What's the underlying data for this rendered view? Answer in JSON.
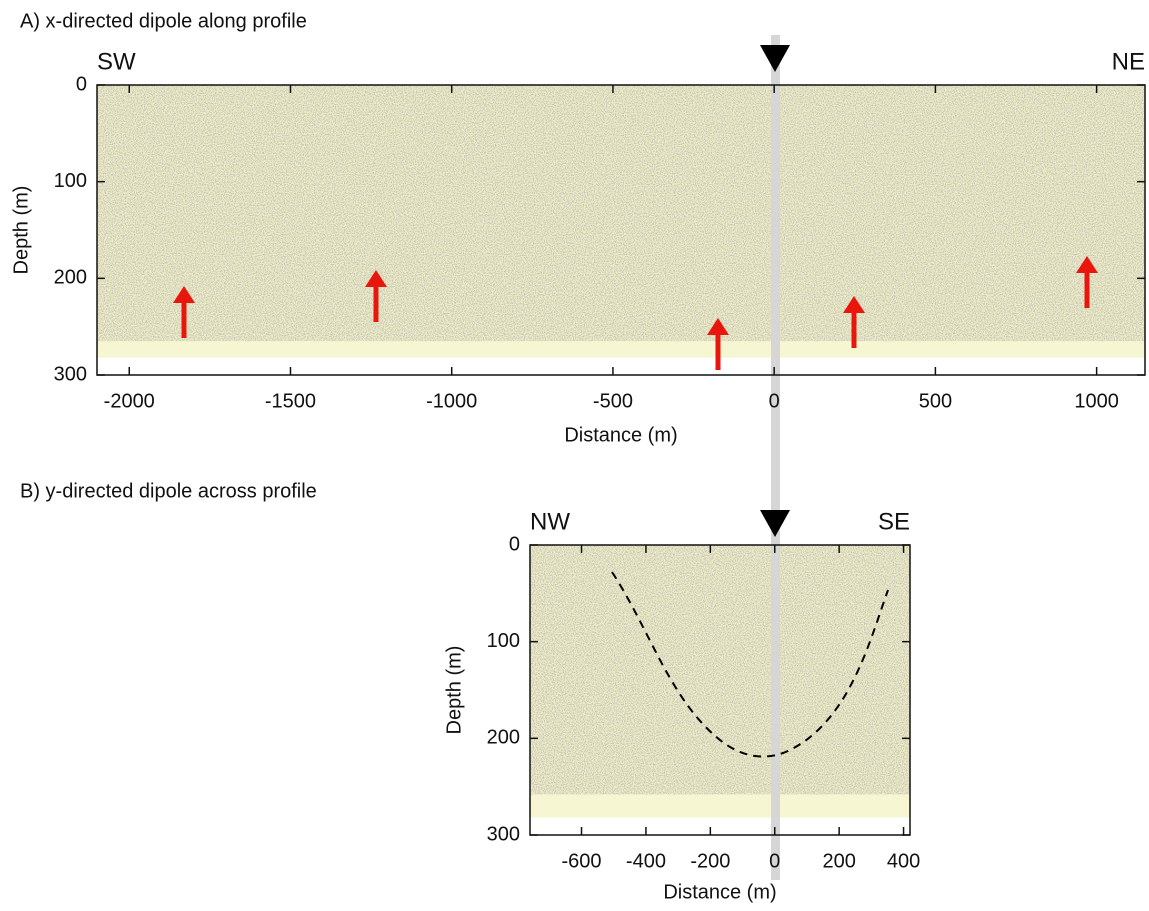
{
  "chart_data": [
    {
      "type": "section",
      "title": "A) x-directed dipole along profile",
      "left_label": "SW",
      "right_label": "NE",
      "x_label": "Distance (m)",
      "y_label": "Depth (m)",
      "xlim": [
        -2100,
        1150
      ],
      "ylim": [
        300,
        0
      ],
      "xticks": [
        -2000,
        -1500,
        -1000,
        -500,
        0,
        500,
        1000
      ],
      "yticks": [
        0,
        100,
        200,
        300
      ]
    },
    {
      "type": "section",
      "title": "B) y-directed dipole across profile",
      "left_label": "NW",
      "right_label": "SE",
      "x_label": "Distance (m)",
      "y_label": "Depth (m)",
      "xlim": [
        -760,
        420
      ],
      "ylim": [
        300,
        0
      ],
      "xticks": [
        -600,
        -400,
        -200,
        0,
        200,
        400
      ],
      "yticks": [
        0,
        100,
        200,
        300
      ]
    }
  ]
}
